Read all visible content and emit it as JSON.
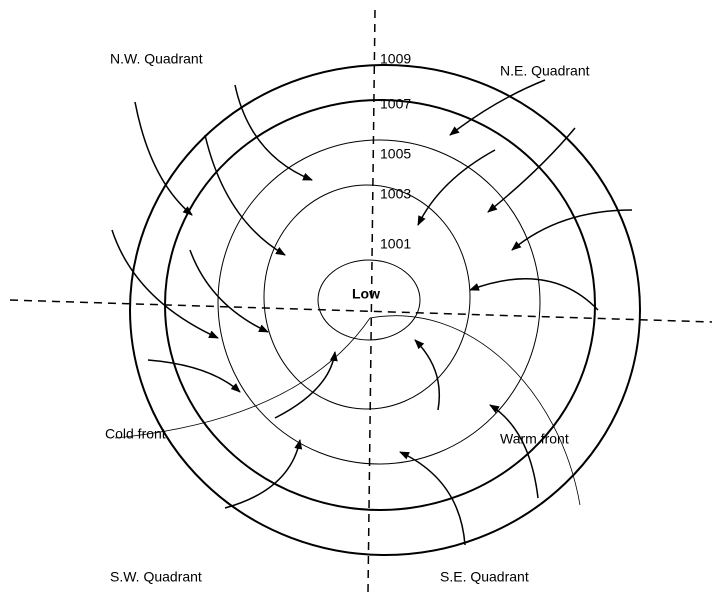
{
  "quadrants": {
    "nw": "N.W. Quadrant",
    "ne": "N.E. Quadrant",
    "sw": "S.W. Quadrant",
    "se": "S.E. Quadrant"
  },
  "isobars": [
    1009,
    1007,
    1005,
    1003,
    1001
  ],
  "center": "Low",
  "fronts": {
    "cold": "Cold front",
    "warm": "Warm front"
  }
}
